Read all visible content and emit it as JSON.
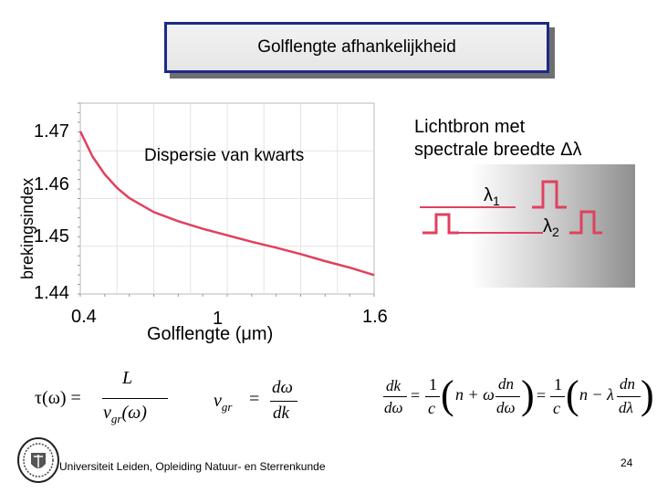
{
  "title": "Golflengte afhankelijkheid",
  "chart_data": {
    "type": "line",
    "xlabel": "Golflengte (μm)",
    "ylabel": "brekingsindex",
    "x_ticks": [
      "0.4",
      "1",
      "1.6"
    ],
    "y_ticks": [
      "1.47",
      "1.46",
      "1.45",
      "1.44"
    ],
    "xlim": [
      0.4,
      1.6
    ],
    "ylim": [
      1.44,
      1.47
    ],
    "grid": true,
    "annotation": "Dispersie van kwarts",
    "series": [
      {
        "color": "#e0415f",
        "x": [
          0.4,
          0.45,
          0.5,
          0.55,
          0.6,
          0.7,
          0.8,
          0.9,
          1.0,
          1.1,
          1.2,
          1.3,
          1.4,
          1.5,
          1.6
        ],
        "y": [
          1.4702,
          1.4655,
          1.4622,
          1.4597,
          1.4578,
          1.4552,
          1.4535,
          1.4521,
          1.4509,
          1.4497,
          1.4486,
          1.4474,
          1.4461,
          1.4449,
          1.4435
        ]
      }
    ]
  },
  "light_source": {
    "line1": "Lichtbron met",
    "line2": "spectrale breedte Δλ",
    "lambda1_symbol": "λ",
    "lambda1_sub": "1",
    "lambda2_symbol": "λ",
    "lambda2_sub": "2",
    "lambda1_color": "#e0415f",
    "lambda2_color": "#e0415f"
  },
  "formulas": {
    "tau_lhs": "τ(ω) =",
    "tau_num": "L",
    "tau_den": "v",
    "tau_den_sub": "gr",
    "tau_den_tail": "(ω)",
    "vgr_lhs": "v",
    "vgr_lhs_sub": "gr",
    "vgr_eq": "=",
    "vgr_num": "dω",
    "vgr_den": "dk",
    "dk_num": "dk",
    "dk_den": "dω",
    "eq1": "=",
    "one1": "1",
    "c1": "c",
    "paren1_a": "n + ω",
    "dn1": "dn",
    "dom1": "dω",
    "eq2": "=",
    "one2": "1",
    "c2": "c",
    "paren2_a": "n − λ",
    "dn2": "dn",
    "dl2": "dλ"
  },
  "footer": "Universiteit Leiden, Opleiding Natuur- en Sterrenkunde",
  "page_number": "24"
}
